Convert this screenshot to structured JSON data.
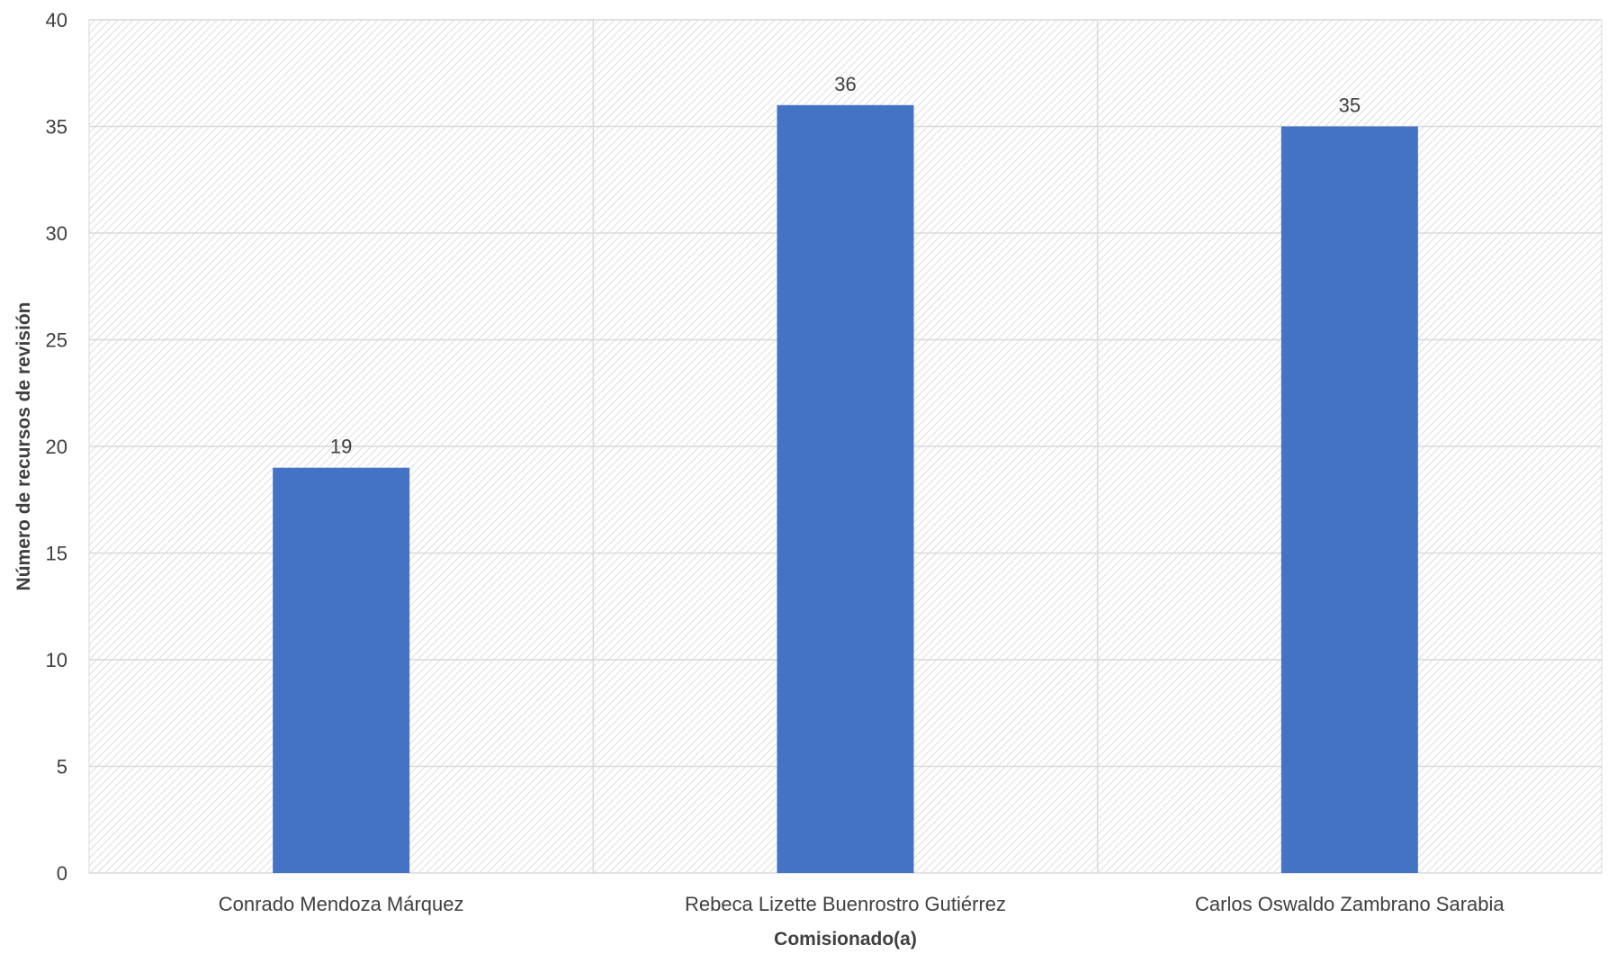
{
  "chart_data": {
    "type": "bar",
    "title": "",
    "xlabel": "Comisionado(a)",
    "ylabel": "Número de recursos de revisión",
    "categories": [
      "Conrado Mendoza Márquez",
      "Rebeca Lizette Buenrostro Gutiérrez",
      "Carlos Oswaldo Zambrano Sarabia"
    ],
    "values": [
      19,
      36,
      35
    ],
    "ylim": [
      0,
      40
    ],
    "yticks": [
      0,
      5,
      10,
      15,
      20,
      25,
      30,
      35,
      40
    ],
    "grid": true,
    "legend": "none",
    "data_labels": true,
    "bar_color": "#4472C4",
    "grid_color": "#D9D9D9",
    "background_pattern": "diagonal-hatch"
  }
}
